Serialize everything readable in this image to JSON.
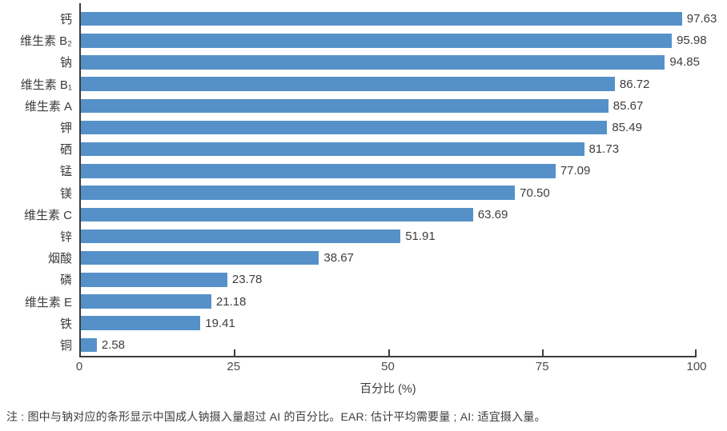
{
  "chart_data": {
    "type": "bar",
    "orientation": "horizontal",
    "title": "",
    "xlabel": "百分比 (%)",
    "ylabel": "",
    "categories": [
      "钙",
      "维生素 B₂",
      "钠",
      "维生素 B₁",
      "维生素 A",
      "钾",
      "硒",
      "锰",
      "镁",
      "维生素 C",
      "锌",
      "烟酸",
      "磷",
      "维生素 E",
      "铁",
      "铜"
    ],
    "values": [
      97.63,
      95.98,
      94.85,
      86.72,
      85.67,
      85.49,
      81.73,
      77.09,
      70.5,
      63.69,
      51.91,
      38.67,
      23.78,
      21.18,
      19.41,
      2.58
    ],
    "value_labels": [
      "97.63",
      "95.98",
      "94.85",
      "86.72",
      "85.67",
      "85.49",
      "81.73",
      "77.09",
      "70.50",
      "63.69",
      "51.91",
      "38.67",
      "23.78",
      "21.18",
      "19.41",
      "2.58"
    ],
    "xlim": [
      0,
      100
    ],
    "xticks": [
      0,
      25,
      50,
      75,
      100
    ],
    "grid": false,
    "legend_position": "none",
    "bar_color": "#5591c8"
  },
  "note": "注 : 图中与钠对应的条形显示中国成人钠摄入量超过 AI 的百分比。EAR: 估计平均需要量 ; AI: 适宜摄入量。",
  "colors": {
    "bar": "#5591c8",
    "axis": "#3c3c3c",
    "text": "#3d3d3d"
  }
}
